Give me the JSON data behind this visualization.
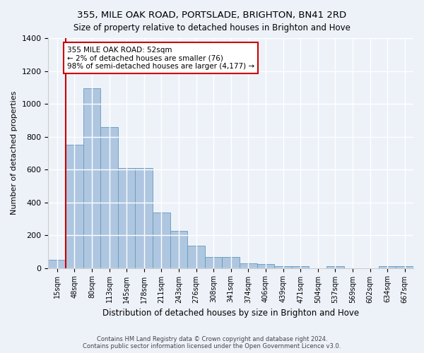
{
  "title": "355, MILE OAK ROAD, PORTSLADE, BRIGHTON, BN41 2RD",
  "subtitle": "Size of property relative to detached houses in Brighton and Hove",
  "xlabel": "Distribution of detached houses by size in Brighton and Hove",
  "ylabel": "Number of detached properties",
  "footer1": "Contains HM Land Registry data © Crown copyright and database right 2024.",
  "footer2": "Contains public sector information licensed under the Open Government Licence v3.0.",
  "categories": [
    "15sqm",
    "48sqm",
    "80sqm",
    "113sqm",
    "145sqm",
    "178sqm",
    "211sqm",
    "243sqm",
    "276sqm",
    "308sqm",
    "341sqm",
    "374sqm",
    "406sqm",
    "439sqm",
    "471sqm",
    "504sqm",
    "537sqm",
    "569sqm",
    "602sqm",
    "634sqm",
    "667sqm"
  ],
  "values": [
    50,
    750,
    1095,
    860,
    610,
    610,
    340,
    225,
    135,
    65,
    65,
    30,
    25,
    13,
    10,
    0,
    13,
    0,
    0,
    13,
    13
  ],
  "bar_color": "#aec6e0",
  "bar_edge_color": "#6699bb",
  "annotation_text": "355 MILE OAK ROAD: 52sqm\n← 2% of detached houses are smaller (76)\n98% of semi-detached houses are larger (4,177) →",
  "vline_x": 0.5,
  "vline_color": "#cc0000",
  "annotation_box_color": "#ffffff",
  "annotation_box_edge": "#cc0000",
  "bg_color": "#edf2f9",
  "grid_color": "#ffffff",
  "ylim": [
    0,
    1400
  ],
  "yticks": [
    0,
    200,
    400,
    600,
    800,
    1000,
    1200,
    1400
  ]
}
